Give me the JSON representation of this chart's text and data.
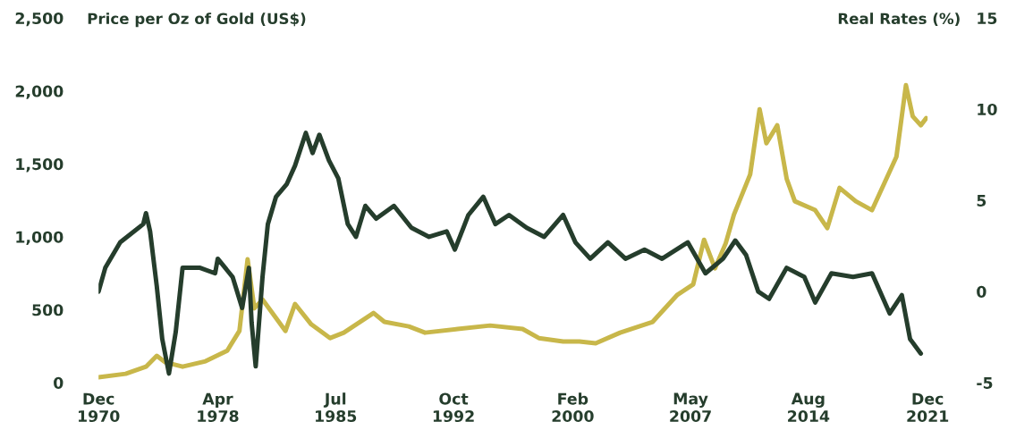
{
  "chart_data": {
    "type": "line",
    "ylabel": "Price per Oz of Gold (US$)",
    "y2label": "Real Rates (%)",
    "xlim": [
      "1970-12",
      "2021-12"
    ],
    "xticks": [
      {
        "value": "1970-12",
        "label": "Dec\n1970"
      },
      {
        "value": "1978-04",
        "label": "Apr\n1978"
      },
      {
        "value": "1985-07",
        "label": "Jul\n1985"
      },
      {
        "value": "1992-10",
        "label": "Oct\n1992"
      },
      {
        "value": "2000-02",
        "label": "Feb\n2000"
      },
      {
        "value": "2007-05",
        "label": "May\n2007"
      },
      {
        "value": "2014-08",
        "label": "Aug\n2014"
      },
      {
        "value": "2021-12",
        "label": "Dec\n2021"
      }
    ],
    "ylim": [
      0,
      2500
    ],
    "yticks": [
      0,
      {
        "value": 500,
        "label": "500"
      },
      {
        "value": 1000,
        "label": "1,000"
      },
      {
        "value": 1500,
        "label": "1,500"
      },
      {
        "value": 2000,
        "label": "2,000"
      },
      {
        "value": 2500,
        "label": "2,500"
      }
    ],
    "y2lim": [
      -5,
      15
    ],
    "y2ticks": [
      -5,
      0,
      5,
      10,
      15
    ],
    "grid": false,
    "series": [
      {
        "color": "#c8b74a",
        "x": [
          "1970-12",
          "1972-08",
          "1973-11",
          "1974-07",
          "1975-01",
          "1976-02",
          "1977-07",
          "1978-11",
          "1979-08",
          "1980-02",
          "1980-07",
          "1981-01",
          "1982-06",
          "1983-01",
          "1984-01",
          "1985-03",
          "1986-01",
          "1987-11",
          "1988-07",
          "1990-01",
          "1991-01",
          "1993-01",
          "1995-01",
          "1997-01",
          "1998-01",
          "1999-07",
          "2000-07",
          "2001-07",
          "2003-01",
          "2005-01",
          "2006-07",
          "2007-07",
          "2008-03",
          "2008-11",
          "2009-07",
          "2010-01",
          "2011-01",
          "2011-08",
          "2012-01",
          "2012-09",
          "2013-04",
          "2013-10",
          "2015-01",
          "2015-10",
          "2016-07",
          "2017-07",
          "2018-07",
          "2019-04",
          "2020-01",
          "2020-08",
          "2021-01",
          "2021-07",
          "2021-11"
        ],
        "values": [
          37,
          61,
          110,
          184,
          141,
          110,
          147,
          220,
          355,
          846,
          510,
          570,
          355,
          540,
          400,
          306,
          343,
          478,
          417,
          386,
          343,
          368,
          392,
          368,
          306,
          282,
          282,
          270,
          343,
          417,
          600,
          674,
          980,
          784,
          956,
          1152,
          1428,
          1875,
          1642,
          1765,
          1397,
          1244,
          1183,
          1060,
          1336,
          1244,
          1183,
          1366,
          1550,
          2040,
          1826,
          1765,
          1814
        ]
      },
      {
        "color": "#253d2c",
        "axis": "y2",
        "x": [
          "1970-12",
          "1971-05",
          "1972-04",
          "1973-09",
          "1973-11",
          "1974-02",
          "1974-07",
          "1974-11",
          "1975-04",
          "1975-09",
          "1976-02",
          "1977-03",
          "1978-02",
          "1978-04",
          "1979-03",
          "1979-10",
          "1980-03",
          "1980-05",
          "1980-08",
          "1981-01",
          "1981-05",
          "1981-11",
          "1982-07",
          "1983-01",
          "1983-09",
          "1984-02",
          "1984-07",
          "1985-02",
          "1985-09",
          "1986-04",
          "1986-10",
          "1987-05",
          "1988-01",
          "1989-02",
          "1990-03",
          "1991-04",
          "1992-05",
          "1992-11",
          "1993-09",
          "1994-08",
          "1995-05",
          "1996-03",
          "1997-04",
          "1998-05",
          "1999-07",
          "2000-04",
          "2001-03",
          "2002-04",
          "2003-05",
          "2004-07",
          "2005-08",
          "2007-03",
          "2008-04",
          "2009-05",
          "2010-02",
          "2010-10",
          "2011-07",
          "2012-03",
          "2013-04",
          "2014-05",
          "2015-01",
          "2016-01",
          "2017-05",
          "2018-07",
          "2019-08",
          "2020-05",
          "2020-11",
          "2021-07"
        ],
        "values": [
          0,
          1.3,
          2.7,
          3.7,
          4.3,
          3.3,
          0.3,
          -2.6,
          -4.5,
          -2.2,
          1.3,
          1.3,
          1.0,
          1.8,
          0.8,
          -0.9,
          1.3,
          -1.7,
          -4.1,
          0.8,
          3.7,
          5.2,
          5.9,
          6.9,
          8.7,
          7.6,
          8.6,
          7.2,
          6.2,
          3.7,
          3.0,
          4.7,
          4.0,
          4.7,
          3.5,
          3.0,
          3.3,
          2.3,
          4.2,
          5.2,
          3.7,
          4.2,
          3.5,
          3.0,
          4.2,
          2.7,
          1.8,
          2.7,
          1.8,
          2.3,
          1.8,
          2.7,
          1.0,
          1.8,
          2.8,
          2.0,
          0.0,
          -0.4,
          1.3,
          0.8,
          -0.6,
          1.0,
          0.8,
          1.0,
          -1.2,
          -0.2,
          -2.6,
          -3.4
        ]
      }
    ]
  }
}
